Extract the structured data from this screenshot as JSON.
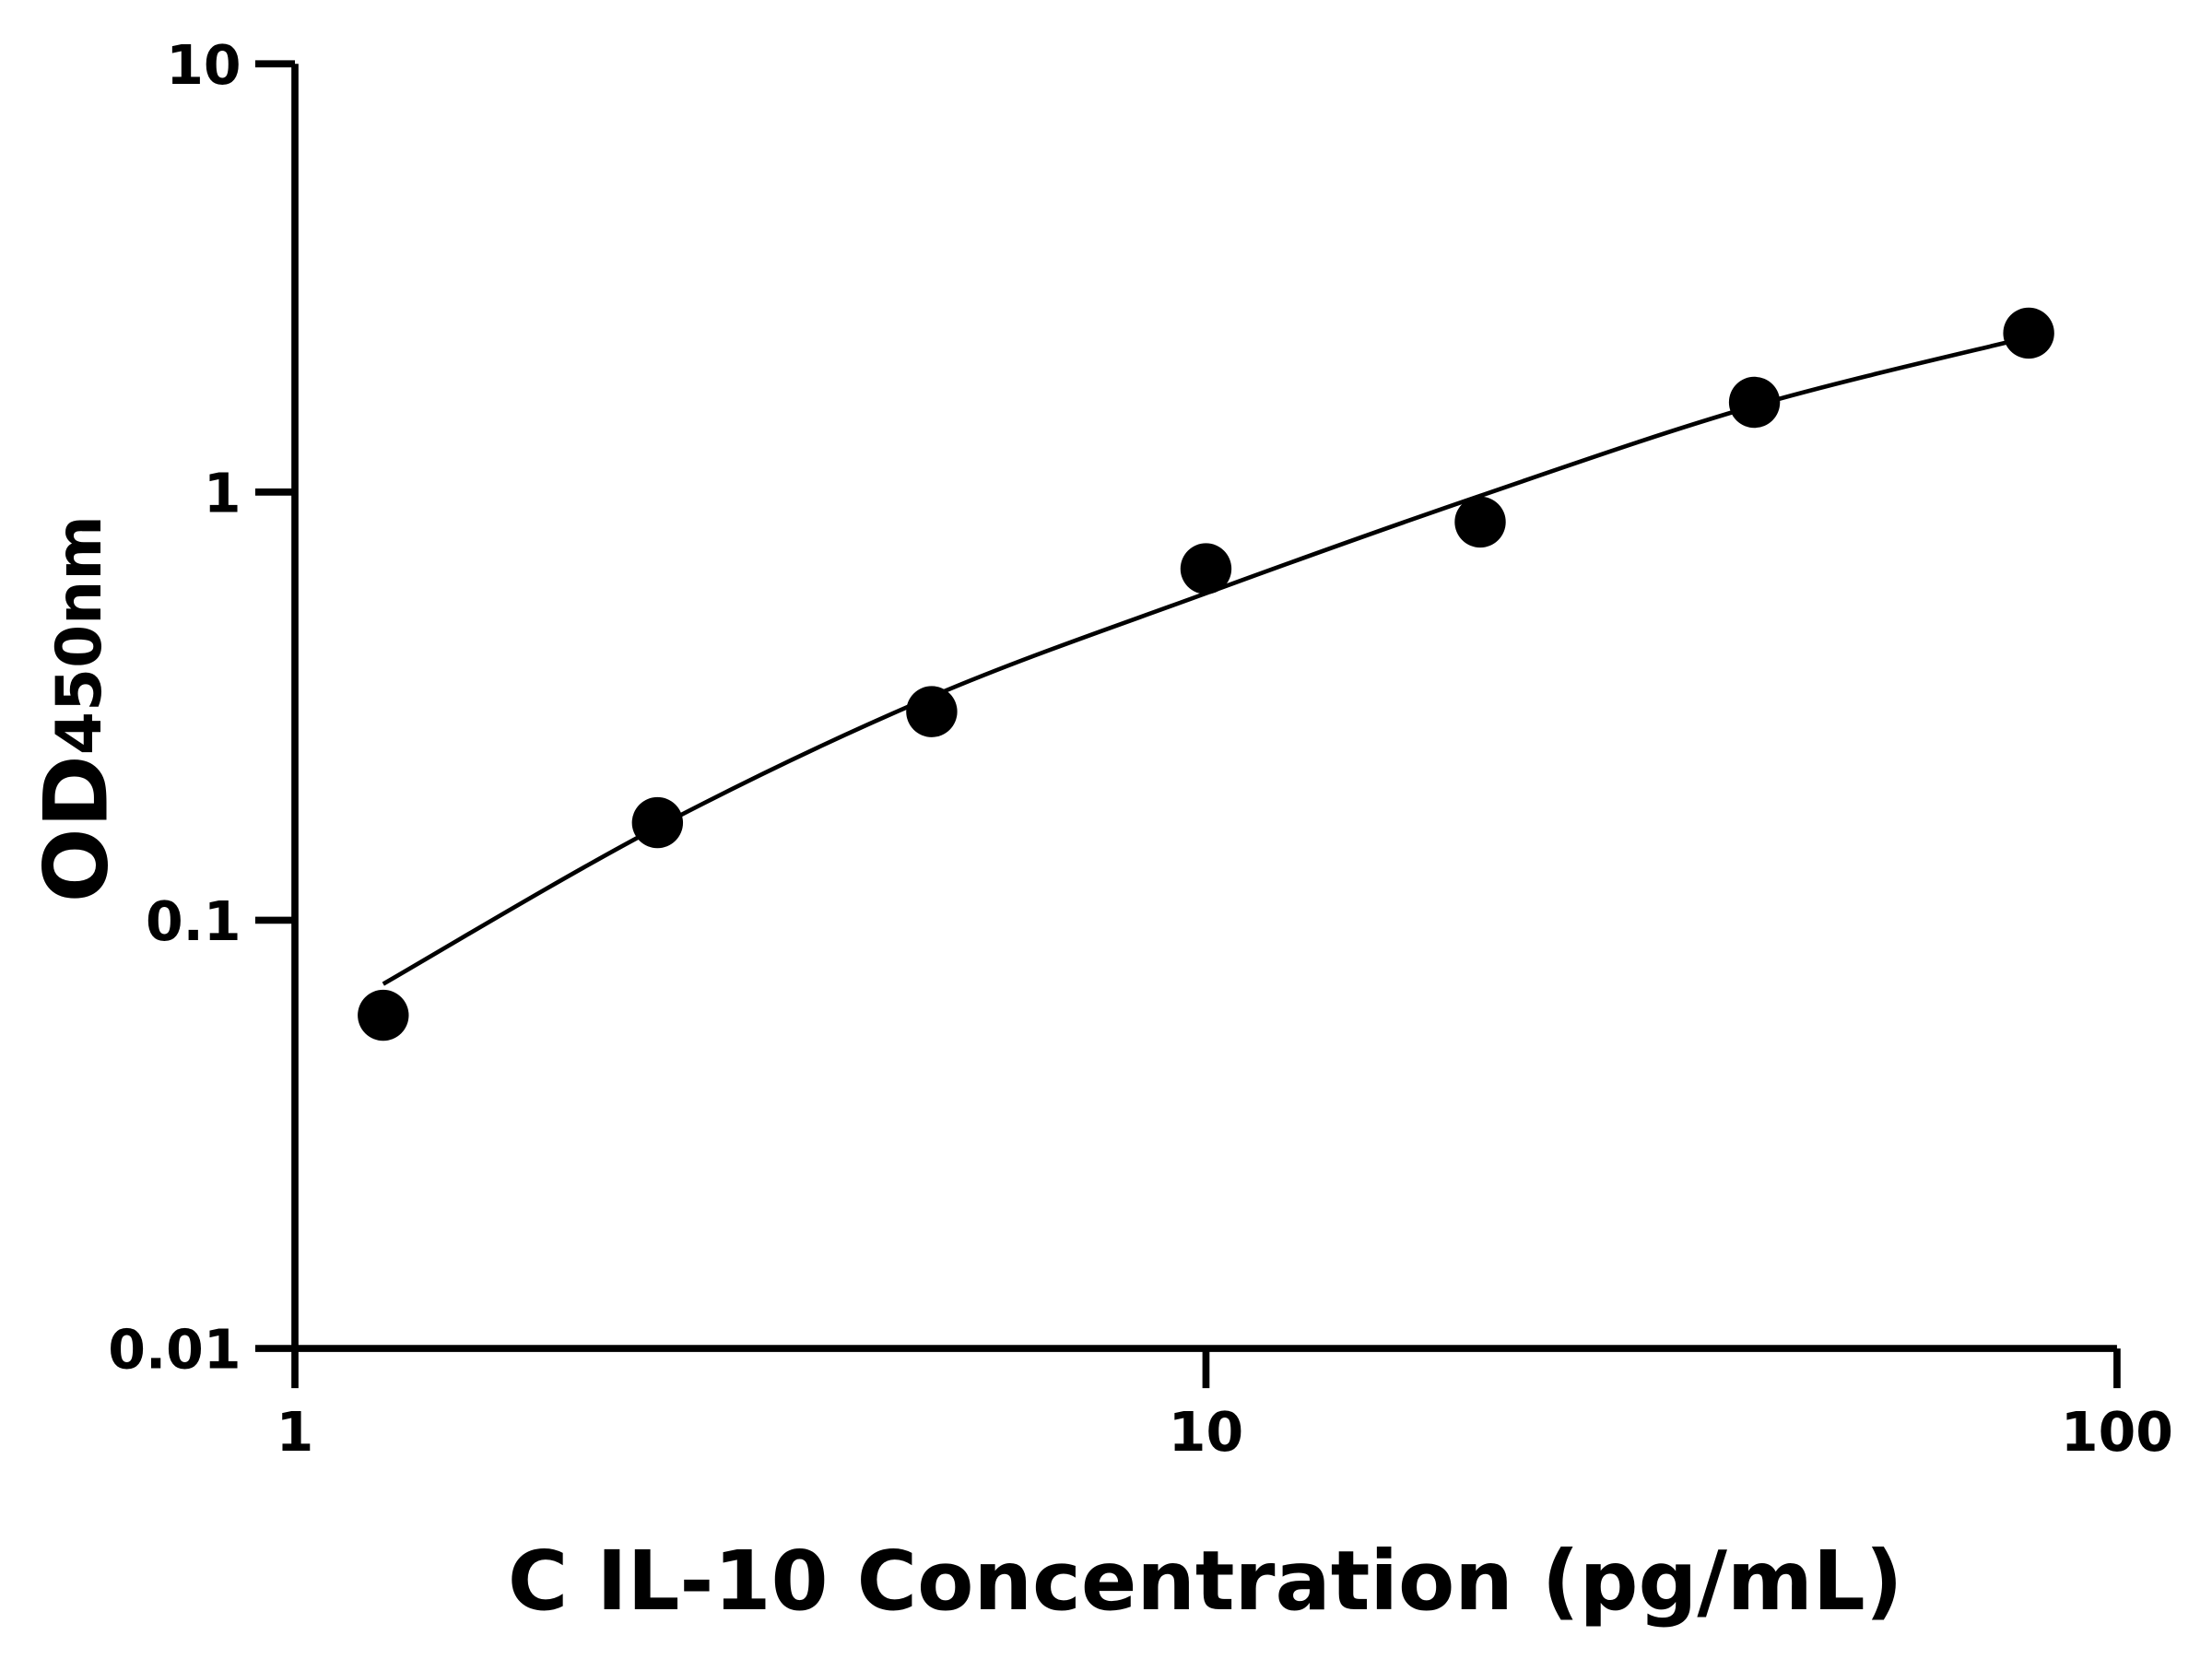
{
  "chart_data": {
    "type": "scatter",
    "title": "",
    "xlabel": "C IL-10 Concentration (pg/mL)",
    "ylabel_main": "OD",
    "ylabel_sub": "450nm",
    "x_scale": "log",
    "y_scale": "log",
    "xlim": [
      1,
      100
    ],
    "ylim": [
      0.01,
      10
    ],
    "x_ticks": [
      1,
      10,
      100
    ],
    "x_tick_labels": [
      "1",
      "10",
      "100"
    ],
    "y_ticks": [
      0.01,
      0.1,
      1,
      10
    ],
    "y_tick_labels": [
      "0.01",
      "0.1",
      "1",
      "10"
    ],
    "grid": false,
    "points": [
      {
        "x": 1.25,
        "y": 0.06
      },
      {
        "x": 2.5,
        "y": 0.169
      },
      {
        "x": 5,
        "y": 0.307
      },
      {
        "x": 10,
        "y": 0.662
      },
      {
        "x": 20,
        "y": 0.851
      },
      {
        "x": 40,
        "y": 1.62
      },
      {
        "x": 80,
        "y": 2.35
      }
    ],
    "fit_curve": [
      {
        "x": 1.25,
        "y": 0.071
      },
      {
        "x": 2.5,
        "y": 0.165
      },
      {
        "x": 5,
        "y": 0.333
      },
      {
        "x": 10,
        "y": 0.58
      },
      {
        "x": 20,
        "y": 0.98
      },
      {
        "x": 40,
        "y": 1.59
      },
      {
        "x": 80,
        "y": 2.3
      }
    ],
    "color": "#000000"
  }
}
